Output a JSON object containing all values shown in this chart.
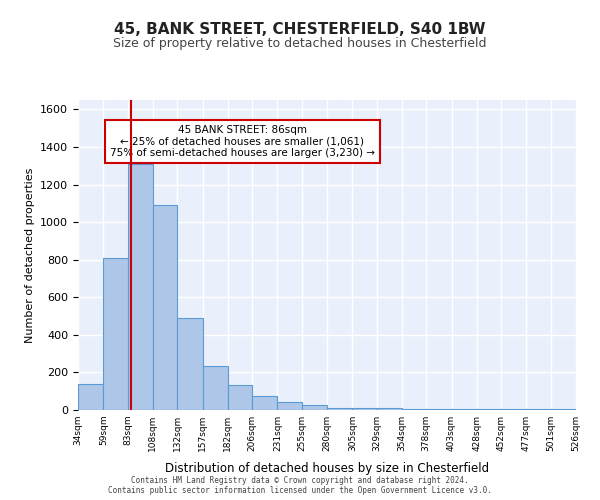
{
  "title1": "45, BANK STREET, CHESTERFIELD, S40 1BW",
  "title2": "Size of property relative to detached houses in Chesterfield",
  "xlabel": "Distribution of detached houses by size in Chesterfield",
  "ylabel": "Number of detached properties",
  "bar_values": [
    140,
    810,
    1310,
    1090,
    490,
    235,
    135,
    75,
    40,
    25,
    10,
    10,
    10,
    5,
    5,
    5,
    5,
    5,
    5,
    5
  ],
  "bin_edges": [
    34,
    59,
    83,
    108,
    132,
    157,
    182,
    206,
    231,
    255,
    280,
    305,
    329,
    354,
    378,
    403,
    428,
    452,
    477,
    501,
    526
  ],
  "tick_labels": [
    "34sqm",
    "59sqm",
    "83sqm",
    "108sqm",
    "132sqm",
    "157sqm",
    "182sqm",
    "206sqm",
    "231sqm",
    "255sqm",
    "280sqm",
    "305sqm",
    "329sqm",
    "354sqm",
    "378sqm",
    "403sqm",
    "428sqm",
    "452sqm",
    "477sqm",
    "501sqm",
    "526sqm"
  ],
  "bar_color": "#aec6e8",
  "bar_edge_color": "#5b9bd5",
  "background_color": "#eaf0fb",
  "grid_color": "#ffffff",
  "property_size": 86,
  "vline_color": "#cc0000",
  "annotation_text": "45 BANK STREET: 86sqm\n← 25% of detached houses are smaller (1,061)\n75% of semi-detached houses are larger (3,230) →",
  "annotation_box_color": "#ffffff",
  "annotation_border_color": "#cc0000",
  "ylim": [
    0,
    1650
  ],
  "yticks": [
    0,
    200,
    400,
    600,
    800,
    1000,
    1200,
    1400,
    1600
  ],
  "footer1": "Contains HM Land Registry data © Crown copyright and database right 2024.",
  "footer2": "Contains public sector information licensed under the Open Government Licence v3.0."
}
